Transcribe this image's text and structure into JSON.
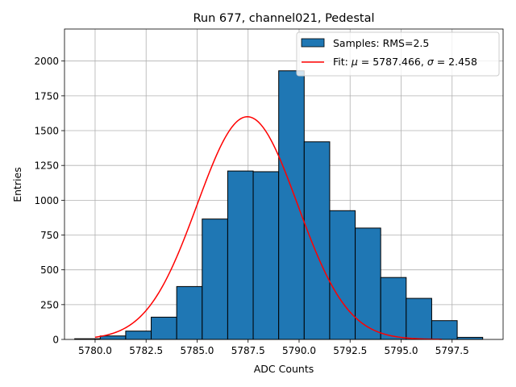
{
  "chart_data": {
    "type": "bar",
    "title": "Run 677, channel021, Pedestal",
    "xlabel": "ADC Counts",
    "ylabel": "Entries",
    "xlim": [
      5778.5,
      5800.0
    ],
    "ylim": [
      0,
      2230
    ],
    "xticks": [
      5780.0,
      5782.5,
      5785.0,
      5787.5,
      5790.0,
      5792.5,
      5795.0,
      5797.5
    ],
    "xtick_labels": [
      "5780.0",
      "5782.5",
      "5785.0",
      "5787.5",
      "5790.0",
      "5792.5",
      "5795.0",
      "5797.5"
    ],
    "yticks": [
      0,
      250,
      500,
      750,
      1000,
      1250,
      1500,
      1750,
      2000
    ],
    "ytick_labels": [
      "0",
      "250",
      "500",
      "750",
      "1000",
      "1250",
      "1500",
      "1750",
      "2000"
    ],
    "grid": true,
    "legend_position": "top-right",
    "histogram": {
      "name": "Samples: RMS=2.5",
      "color": "#1f77b4",
      "edge_color": "#000000",
      "bin_edges": [
        5779.0,
        5780.25,
        5781.5,
        5782.75,
        5784.0,
        5785.25,
        5786.5,
        5787.75,
        5789.0,
        5790.25,
        5791.5,
        5792.75,
        5794.0,
        5795.25,
        5796.5,
        5797.75,
        5799.0
      ],
      "counts": [
        5,
        25,
        60,
        160,
        380,
        865,
        1210,
        1205,
        1930,
        1420,
        925,
        800,
        445,
        295,
        135,
        15
      ]
    },
    "fit": {
      "name": "Fit: μ = 5787.466, σ = 2.458",
      "label_parts": [
        "Fit: ",
        "μ",
        " = 5787.466, ",
        "σ",
        " = 2.458"
      ],
      "color": "#ff0000",
      "mu": 5787.466,
      "sigma": 2.458,
      "amplitude": 1600,
      "x_range": [
        5780.0,
        5797.0
      ]
    }
  }
}
